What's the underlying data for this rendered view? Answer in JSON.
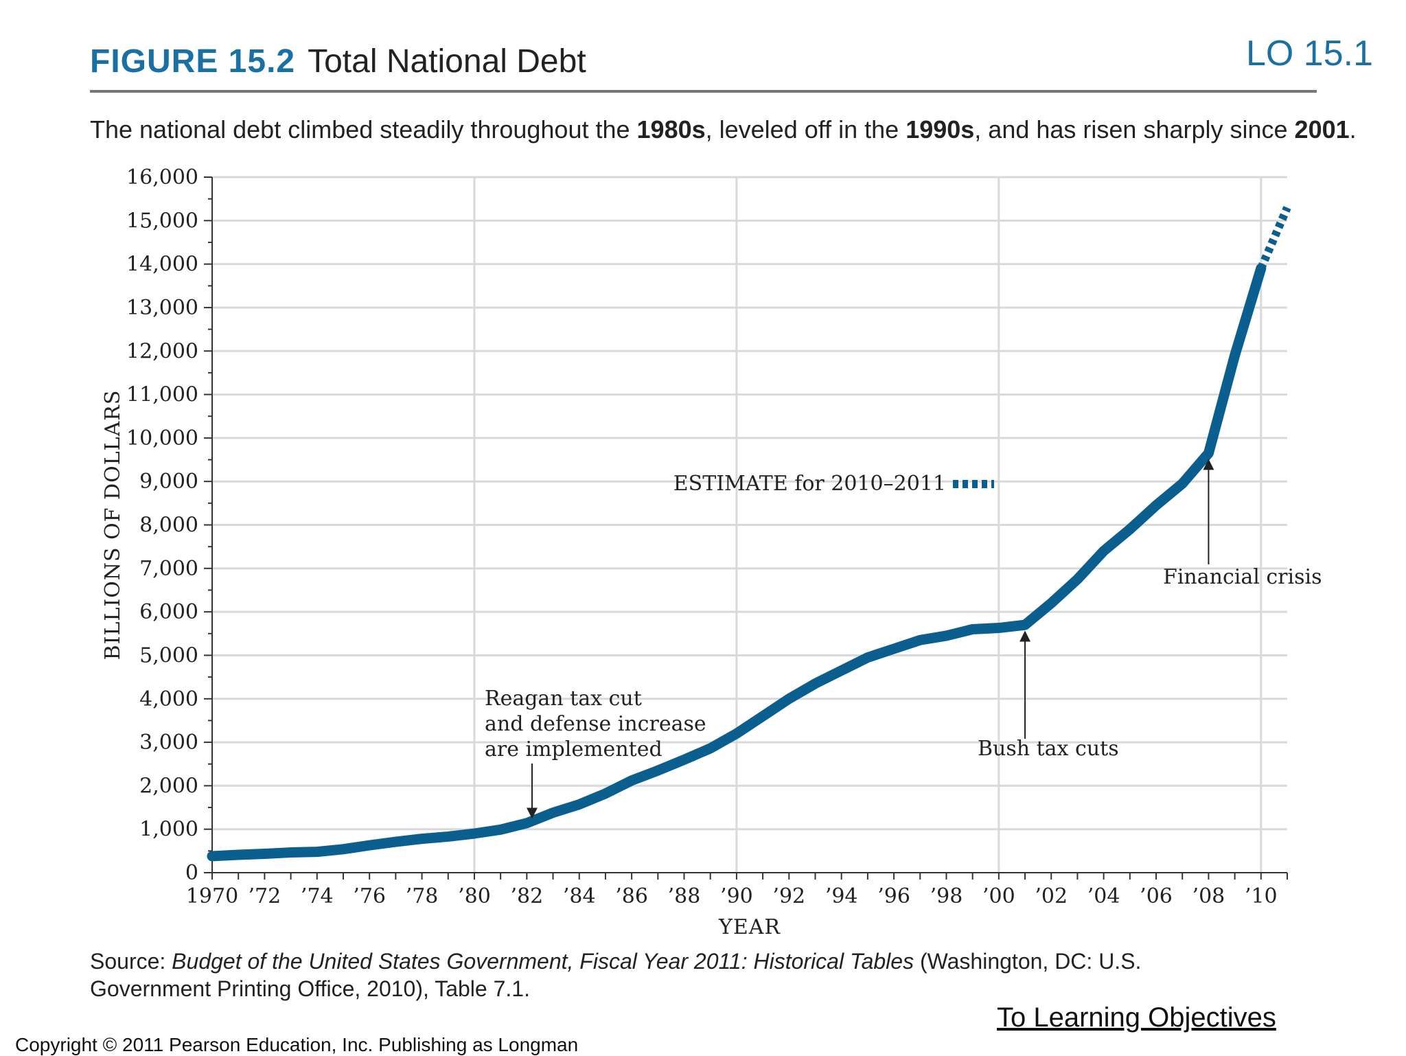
{
  "header": {
    "lo_label": "LO 15.1",
    "figure_label": "FIGURE 15.2",
    "figure_title": "Total National Debt",
    "subtitle_parts": [
      "The national debt climbed steadily throughout the ",
      "1980s",
      ", leveled off in the ",
      "1990s",
      ", and has risen sharply since ",
      "2001",
      "."
    ]
  },
  "colors": {
    "accent": "#1a6fa3",
    "line": "#0b5f8f",
    "grid": "#d9d9d9"
  },
  "chart_data": {
    "type": "line",
    "title": "Total National Debt",
    "xlabel": "YEAR",
    "ylabel": "BILLIONS OF DOLLARS",
    "xlim": [
      1970,
      2011
    ],
    "ylim": [
      0,
      16000
    ],
    "y_ticks": [
      0,
      1000,
      2000,
      3000,
      4000,
      5000,
      6000,
      7000,
      8000,
      9000,
      10000,
      11000,
      12000,
      13000,
      14000,
      15000,
      16000
    ],
    "y_tick_labels": [
      "0",
      "1,000",
      "2,000",
      "3,000",
      "4,000",
      "5,000",
      "6,000",
      "7,000",
      "8,000",
      "9,000",
      "10,000",
      "11,000",
      "12,000",
      "13,000",
      "14,000",
      "15,000",
      "16,000"
    ],
    "x_ticks": [
      1970,
      1972,
      1974,
      1976,
      1978,
      1980,
      1982,
      1984,
      1986,
      1988,
      1990,
      1992,
      1994,
      1996,
      1998,
      2000,
      2002,
      2004,
      2006,
      2008,
      2010
    ],
    "x_tick_labels": [
      "1970",
      "’72",
      "’74",
      "’76",
      "’78",
      "’80",
      "’82",
      "’84",
      "’86",
      "’88",
      "’90",
      "’92",
      "’94",
      "’96",
      "’98",
      "’00",
      "’02",
      "’04",
      "’06",
      "’08",
      "’10"
    ],
    "x_gridlines": [
      1970,
      1980,
      1990,
      2000,
      2010
    ],
    "series": [
      {
        "name": "Total national debt",
        "x": [
          1970,
          1971,
          1972,
          1973,
          1974,
          1975,
          1976,
          1977,
          1978,
          1979,
          1980,
          1981,
          1982,
          1983,
          1984,
          1985,
          1986,
          1987,
          1988,
          1989,
          1990,
          1991,
          1992,
          1993,
          1994,
          1995,
          1996,
          1997,
          1998,
          1999,
          2000,
          2001,
          2002,
          2003,
          2004,
          2005,
          2006,
          2007,
          2008,
          2009,
          2010
        ],
        "values": [
          380,
          410,
          435,
          465,
          480,
          540,
          630,
          710,
          780,
          830,
          900,
          990,
          1140,
          1380,
          1570,
          1820,
          2120,
          2350,
          2600,
          2860,
          3200,
          3600,
          4000,
          4350,
          4650,
          4950,
          5150,
          5350,
          5450,
          5600,
          5630,
          5700,
          6200,
          6750,
          7400,
          7900,
          8450,
          8950,
          9650,
          11900,
          13900
        ]
      },
      {
        "name": "ESTIMATE for 2010–2011",
        "style": "dotted",
        "x": [
          2010,
          2011
        ],
        "values": [
          13900,
          15300
        ]
      }
    ],
    "annotations": [
      {
        "name": "reagan",
        "lines": [
          "Reagan tax cut",
          "and defense increase",
          "are implemented"
        ],
        "target_year": 1982.2,
        "target_value": 1140
      },
      {
        "name": "bush",
        "lines": [
          "Bush tax cuts"
        ],
        "target_year": 2001,
        "target_value": 5700
      },
      {
        "name": "crisis",
        "lines": [
          "Financial crisis"
        ],
        "target_year": 2008,
        "target_value": 9650
      }
    ],
    "legend_label": "ESTIMATE for 2010–2011"
  },
  "source": {
    "prefix": "Source: ",
    "title": "Budget of the United States Government, Fiscal Year 2011: Historical Tables",
    "suffix": " (Washington, DC: U.S.",
    "line2": "Government Printing Office, 2010), Table 7.1."
  },
  "footer": {
    "learning_link": "To Learning Objectives",
    "copyright": "Copyright © 2011 Pearson Education, Inc. Publishing as Longman"
  }
}
